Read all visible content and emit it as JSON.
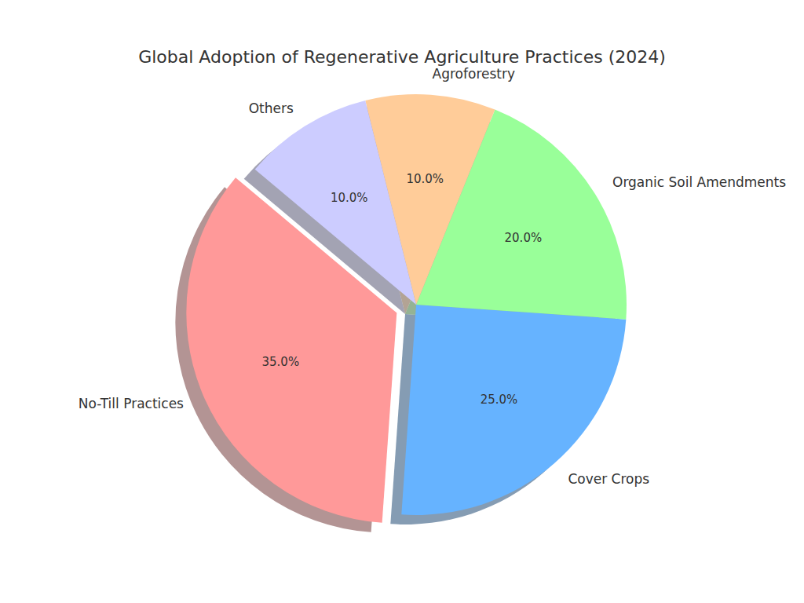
{
  "chart_data": {
    "type": "pie",
    "title": "Global Adoption of Regenerative Agriculture Practices (2024)",
    "categories": [
      "No-Till Practices",
      "Cover Crops",
      "Organic Soil Amendments",
      "Agroforestry",
      "Others"
    ],
    "values": [
      35,
      25,
      20,
      10,
      10
    ],
    "value_labels": [
      "35.0%",
      "25.0%",
      "20.0%",
      "10.0%",
      "10.0%"
    ],
    "colors": [
      "#ff9999",
      "#66b3ff",
      "#99ff99",
      "#ffcc99",
      "#ccccff"
    ],
    "data_labels": true
  }
}
